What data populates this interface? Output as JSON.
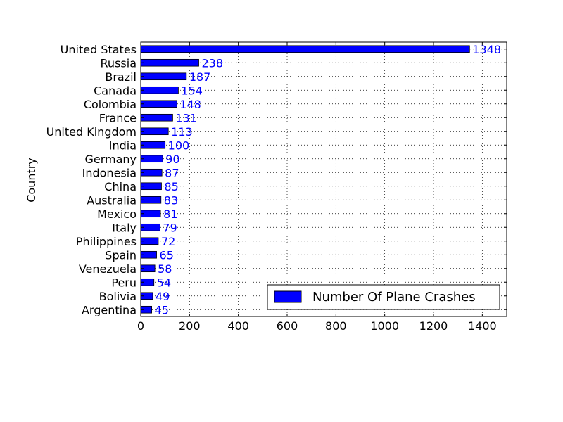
{
  "chart_data": {
    "type": "bar",
    "orientation": "horizontal",
    "title": "",
    "xlabel": "",
    "ylabel": "Country",
    "xlim": [
      0,
      1500
    ],
    "x_ticks": [
      0,
      200,
      400,
      600,
      800,
      1000,
      1200,
      1400
    ],
    "grid": true,
    "legend_position": "lower-right",
    "bar_color": "#0000ff",
    "label_color": "#0000ff",
    "series": [
      {
        "name": "Number Of Plane Crashes",
        "categories": [
          "United States",
          "Russia",
          "Brazil",
          "Canada",
          "Colombia",
          "France",
          "United Kingdom",
          "India",
          "Germany",
          "Indonesia",
          "China",
          "Australia",
          "Mexico",
          "Italy",
          "Philippines",
          "Spain",
          "Venezuela",
          "Peru",
          "Bolivia",
          "Argentina"
        ],
        "values": [
          1348,
          238,
          187,
          154,
          148,
          131,
          113,
          100,
          90,
          87,
          85,
          83,
          81,
          79,
          72,
          65,
          58,
          54,
          49,
          45
        ]
      }
    ]
  }
}
